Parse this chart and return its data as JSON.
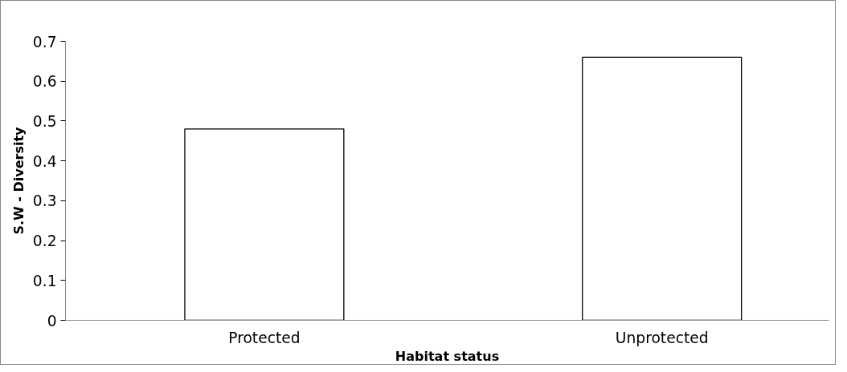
{
  "chart_data": {
    "type": "bar",
    "xlabel": "Habitat status",
    "ylabel": "S.W - Diversity",
    "categories": [
      "Protected",
      "Unprotected"
    ],
    "values": [
      0.48,
      0.66
    ],
    "color": "#ffffff",
    "ylim": [
      0,
      0.7
    ],
    "yticks": [
      0,
      0.1,
      0.2,
      0.3,
      0.4,
      0.5,
      0.6,
      0.7
    ],
    "grid": false
  }
}
